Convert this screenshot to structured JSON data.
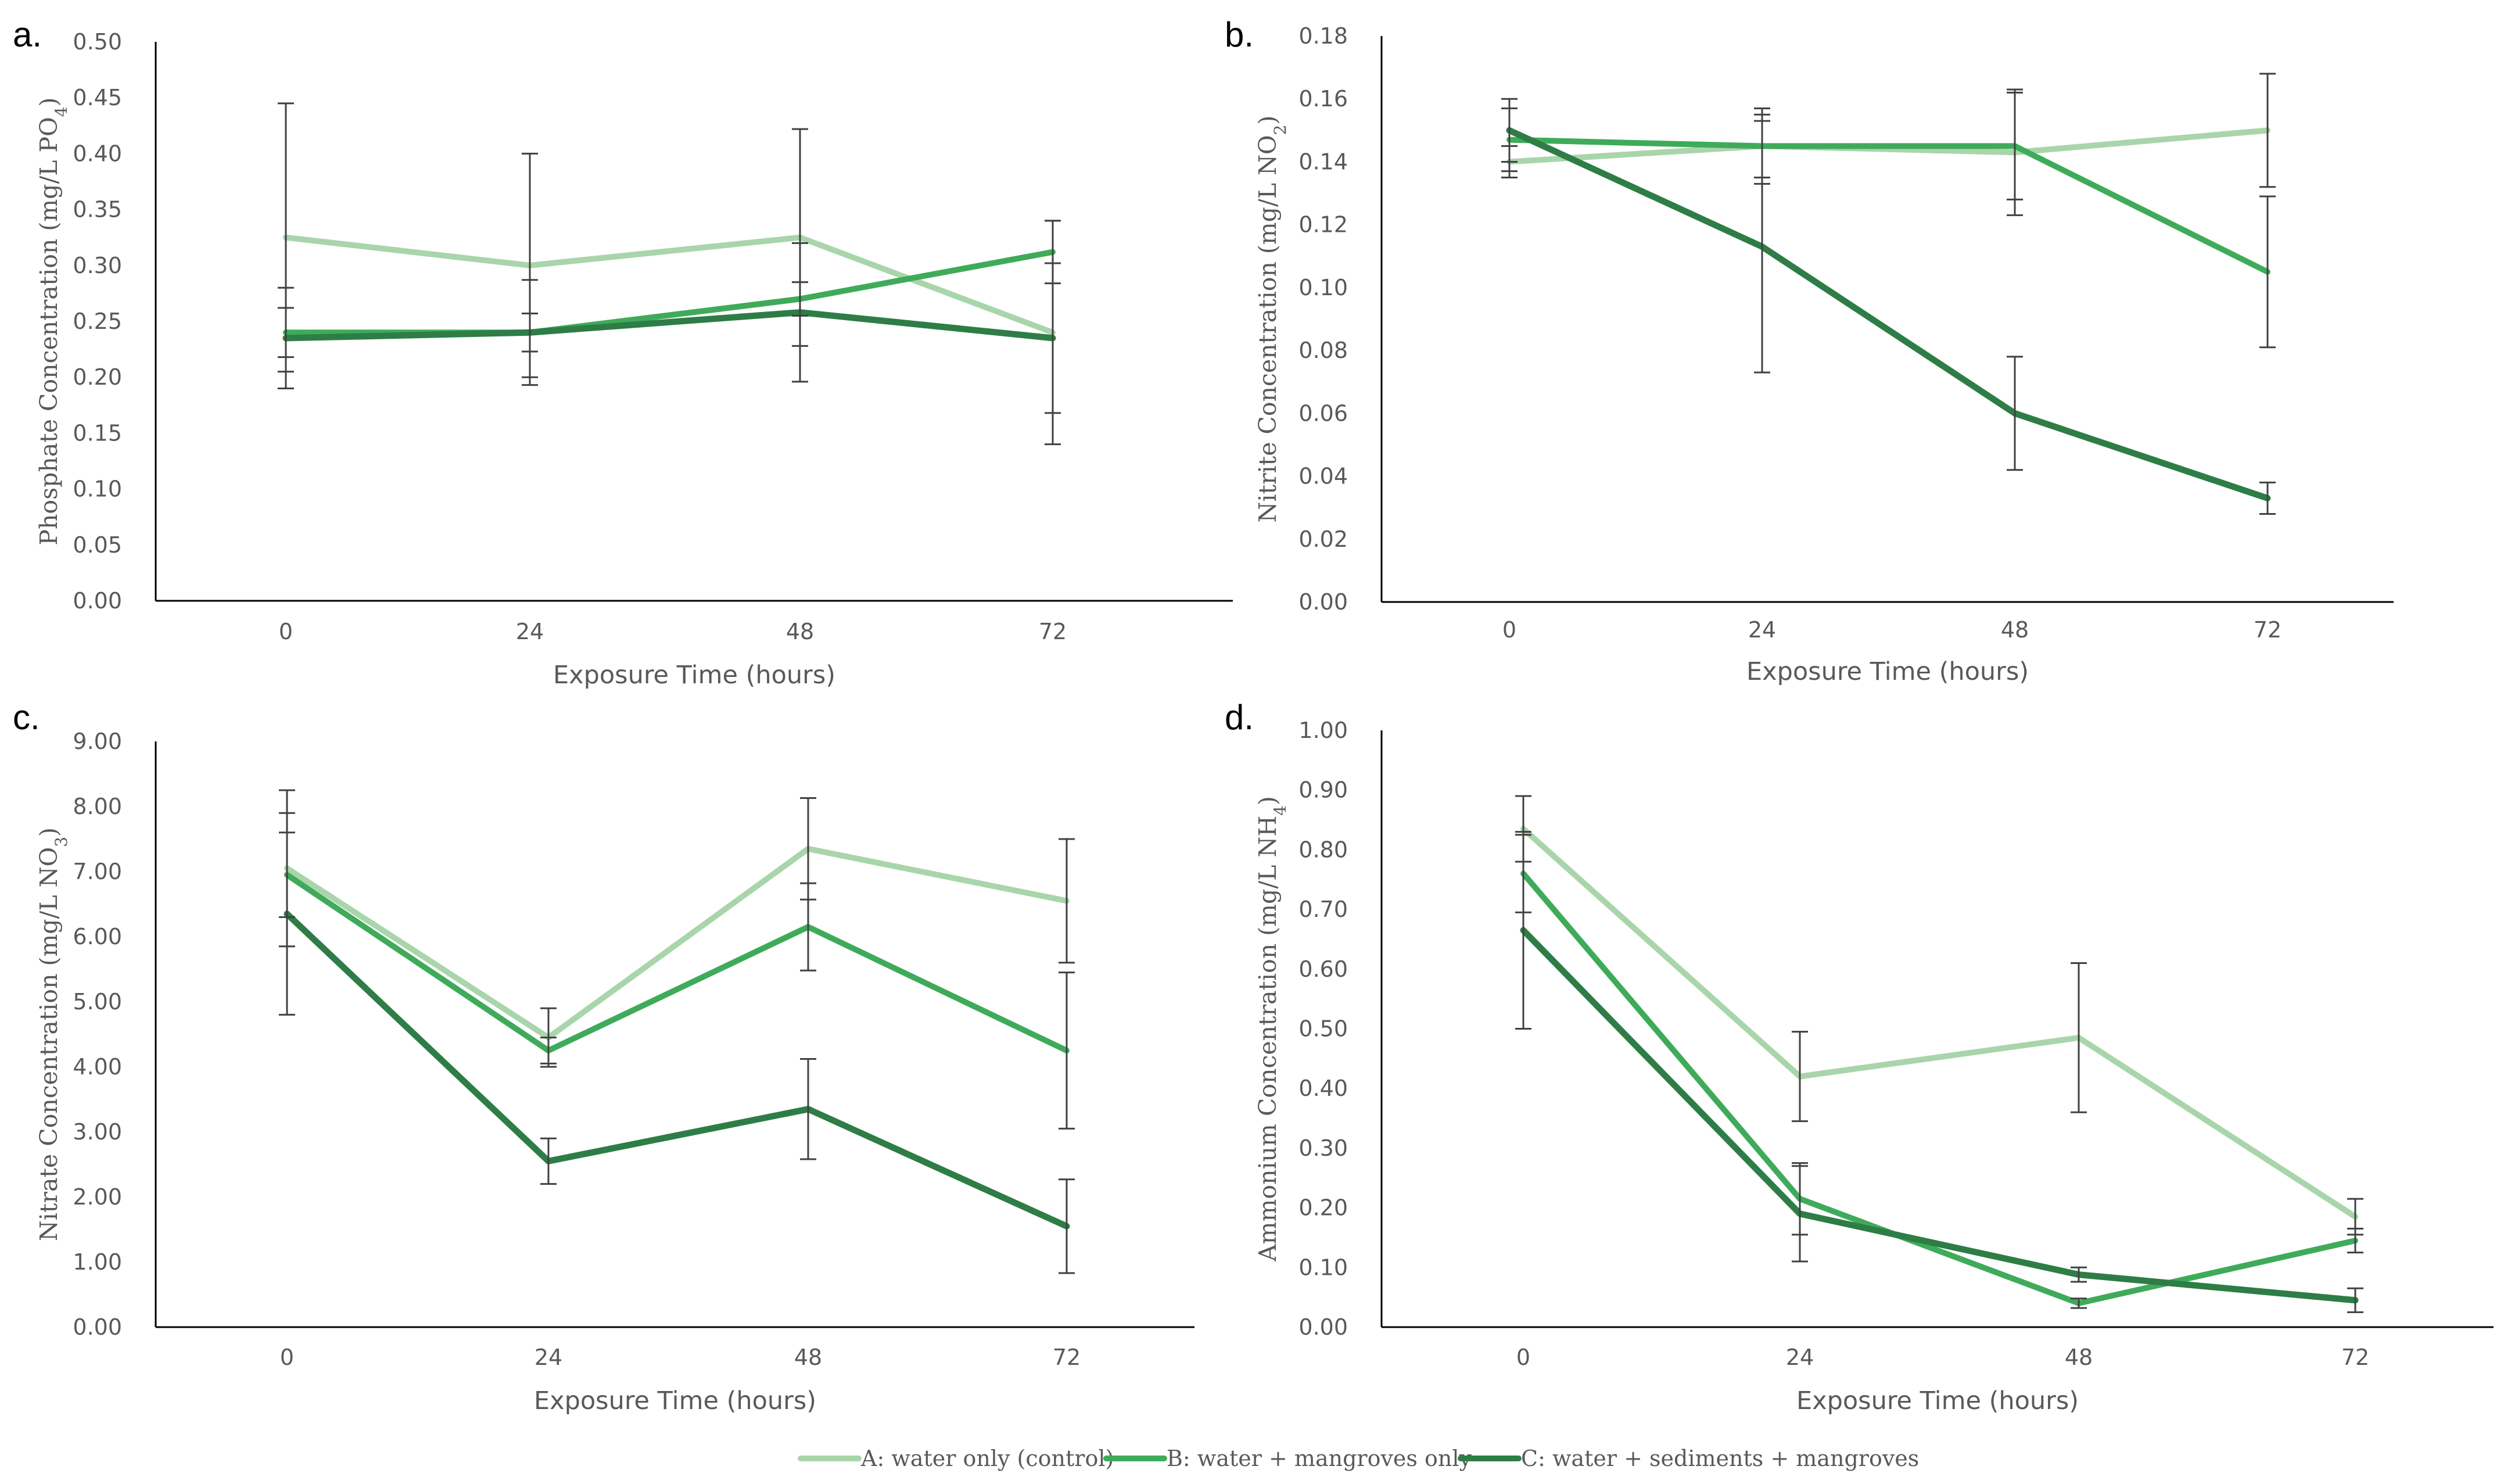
{
  "colors": {
    "A": "#a9d5aa",
    "B": "#3fab5a",
    "C": "#2e7d46",
    "axis": "#000000",
    "error_bar": "#404040"
  },
  "legend": [
    {
      "key": "A",
      "label": "A: water only (control)"
    },
    {
      "key": "B",
      "label": "B: water + mangroves only"
    },
    {
      "key": "C",
      "label": "C: water + sediments + mangroves"
    }
  ],
  "chart_data": [
    {
      "panel": "a.",
      "type": "line",
      "xlabel": "Exposure Time (hours)",
      "ylabel": "Phosphate Concentration (mg/L PO",
      "ylabel_sub": "4",
      "ylabel_end": ")",
      "categories": [
        "0",
        "24",
        "48",
        "72"
      ],
      "ylim": [
        0,
        0.5
      ],
      "yticks": [
        "0.00",
        "0.05",
        "0.10",
        "0.15",
        "0.20",
        "0.25",
        "0.30",
        "0.35",
        "0.40",
        "0.45",
        "0.50"
      ],
      "series": [
        {
          "key": "A",
          "name": "A: water only (control)",
          "values": [
            0.325,
            0.3,
            0.325,
            0.24
          ],
          "errors": [
            0.12,
            0.1,
            0.097,
            0.1
          ]
        },
        {
          "key": "B",
          "name": "B: water + mangroves only",
          "values": [
            0.24,
            0.24,
            0.27,
            0.312
          ],
          "errors": [
            0.022,
            0.017,
            0.015,
            0.028
          ]
        },
        {
          "key": "C",
          "name": "C: water + sediments + mangroves",
          "values": [
            0.235,
            0.24,
            0.258,
            0.235
          ],
          "errors": [
            0.045,
            0.047,
            0.062,
            0.067
          ]
        }
      ]
    },
    {
      "panel": "b.",
      "type": "line",
      "xlabel": "Exposure Time (hours)",
      "ylabel": "Nitrite Concentration (mg/L NO",
      "ylabel_sub": "2",
      "ylabel_end": ")",
      "categories": [
        "0",
        "24",
        "48",
        "72"
      ],
      "ylim": [
        0,
        0.18
      ],
      "yticks": [
        "0.00",
        "0.02",
        "0.04",
        "0.06",
        "0.08",
        "0.10",
        "0.12",
        "0.14",
        "0.16",
        "0.18"
      ],
      "series": [
        {
          "key": "A",
          "name": "A: water only (control)",
          "values": [
            0.14,
            0.145,
            0.143,
            0.15
          ],
          "errors": [
            0.005,
            0.012,
            0.02,
            0.018
          ]
        },
        {
          "key": "B",
          "name": "B: water + mangroves only",
          "values": [
            0.147,
            0.145,
            0.145,
            0.105
          ],
          "errors": [
            0.01,
            0.01,
            0.017,
            0.024
          ]
        },
        {
          "key": "C",
          "name": "C: water + sediments + mangroves",
          "values": [
            0.15,
            0.113,
            0.06,
            0.033
          ],
          "errors": [
            0.01,
            0.04,
            0.018,
            0.005
          ]
        }
      ]
    },
    {
      "panel": "c.",
      "type": "line",
      "xlabel": "Exposure Time (hours)",
      "ylabel": "Nitrate Concentration (mg/L NO",
      "ylabel_sub": "3",
      "ylabel_end": ")",
      "categories": [
        "0",
        "24",
        "48",
        "72"
      ],
      "ylim": [
        0,
        9
      ],
      "yticks": [
        "0.00",
        "1.00",
        "2.00",
        "3.00",
        "4.00",
        "5.00",
        "6.00",
        "7.00",
        "8.00",
        "9.00"
      ],
      "series": [
        {
          "key": "A",
          "name": "A: water only (control)",
          "values": [
            7.05,
            4.45,
            7.35,
            6.55
          ],
          "errors": [
            1.2,
            0.45,
            0.78,
            0.95
          ]
        },
        {
          "key": "B",
          "name": "B: water + mangroves only",
          "values": [
            6.95,
            4.25,
            6.15,
            4.25
          ],
          "errors": [
            0.65,
            0.2,
            0.67,
            1.2
          ]
        },
        {
          "key": "C",
          "name": "C: water + sediments + mangroves",
          "values": [
            6.35,
            2.55,
            3.35,
            1.55
          ],
          "errors": [
            1.55,
            0.35,
            0.77,
            0.72
          ]
        }
      ]
    },
    {
      "panel": "d.",
      "type": "line",
      "xlabel": "Exposure Time (hours)",
      "ylabel": "Ammonium Concentration (mg/L NH",
      "ylabel_sub": "4",
      "ylabel_end": ")",
      "categories": [
        "0",
        "24",
        "48",
        "72"
      ],
      "ylim": [
        0,
        1
      ],
      "yticks": [
        "0.00",
        "0.10",
        "0.20",
        "0.30",
        "0.40",
        "0.50",
        "0.60",
        "0.70",
        "0.80",
        "0.90",
        "1.00"
      ],
      "series": [
        {
          "key": "A",
          "name": "A: water only (control)",
          "values": [
            0.835,
            0.42,
            0.485,
            0.185
          ],
          "errors": [
            0.055,
            0.075,
            0.125,
            0.03
          ]
        },
        {
          "key": "B",
          "name": "B: water + mangroves only",
          "values": [
            0.76,
            0.215,
            0.04,
            0.145
          ],
          "errors": [
            0.065,
            0.06,
            0.008,
            0.02
          ]
        },
        {
          "key": "C",
          "name": "C: water + sediments + mangroves",
          "values": [
            0.665,
            0.19,
            0.088,
            0.045
          ],
          "errors": [
            0.165,
            0.08,
            0.012,
            0.02
          ]
        }
      ]
    }
  ]
}
